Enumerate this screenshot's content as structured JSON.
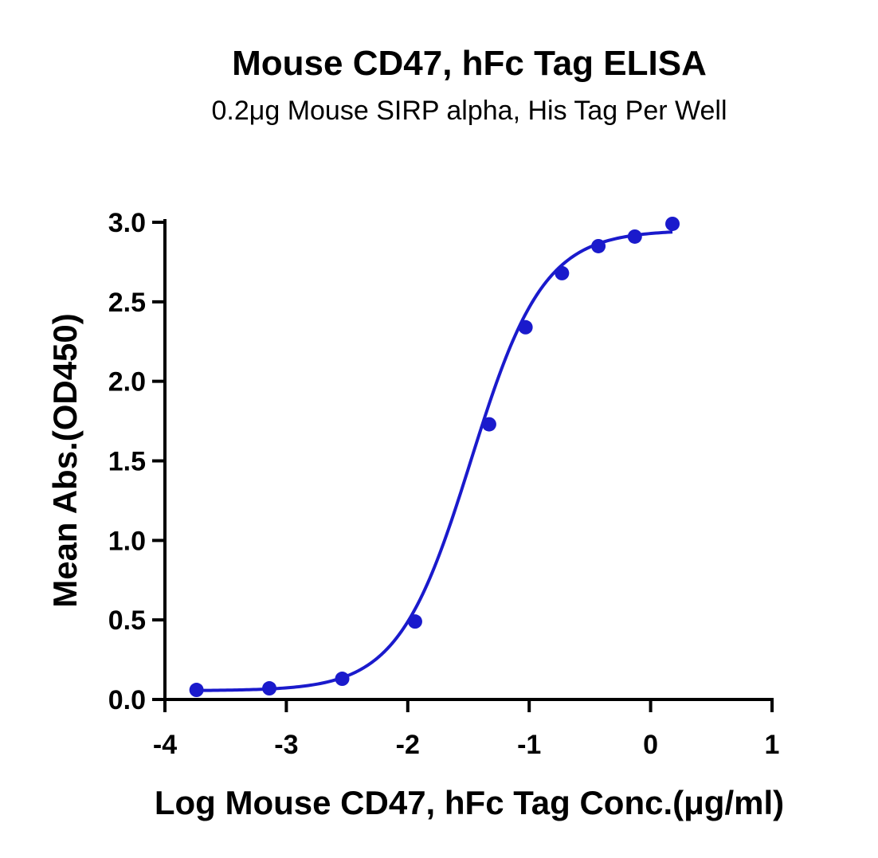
{
  "chart_data": {
    "type": "scatter",
    "title": "Mouse CD47, hFc Tag ELISA",
    "subtitle": "0.2μg Mouse SIRP alpha, His Tag Per Well",
    "xlabel": "Log Mouse CD47, hFc Tag Conc.(μg/ml)",
    "ylabel": "Mean Abs.(OD450)",
    "xlim": [
      -4,
      1
    ],
    "ylim": [
      0,
      3.0
    ],
    "xticks": [
      -4,
      -3,
      -2,
      -1,
      0,
      1
    ],
    "xtick_labels": [
      "-4",
      "-3",
      "-2",
      "-1",
      "0",
      "1"
    ],
    "yticks": [
      0,
      0.5,
      1.0,
      1.5,
      2.0,
      2.5,
      3.0
    ],
    "ytick_labels": [
      "0.0",
      "0.5",
      "1.0",
      "1.5",
      "2.0",
      "2.5",
      "3.0"
    ],
    "grid": false,
    "legend": "none",
    "series": [
      {
        "x": [
          -3.74,
          -3.14,
          -2.54,
          -1.94,
          -1.33,
          -1.03,
          -0.73,
          -0.43,
          -0.13,
          0.18
        ],
        "y": [
          0.06,
          0.07,
          0.13,
          0.49,
          1.73,
          2.34,
          2.68,
          2.85,
          2.91,
          2.99
        ],
        "color": "#1a1acc",
        "fit": "four-parameter logistic"
      }
    ]
  }
}
